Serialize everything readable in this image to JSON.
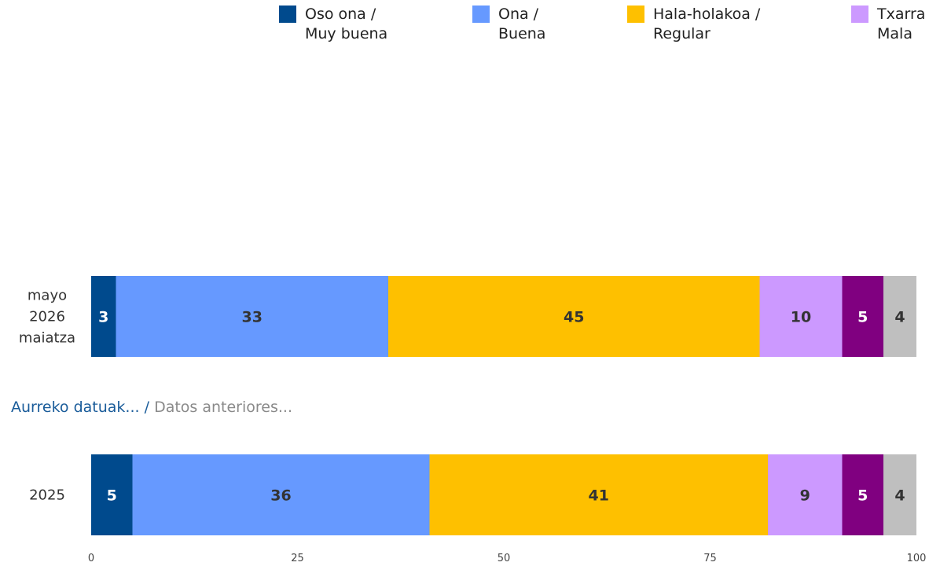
{
  "chart_data": {
    "type": "bar",
    "orientation": "horizontal",
    "stacked": true,
    "categories": [
      [
        "mayo",
        "2026",
        "maiatza"
      ],
      [
        "2025"
      ]
    ],
    "series": [
      {
        "name": [
          "Oso ona /",
          "Muy buena"
        ],
        "color": "#004a8d",
        "label_color": "#ffffff",
        "values": [
          3,
          5
        ]
      },
      {
        "name": [
          "Ona /",
          "Buena"
        ],
        "color": "#6699ff",
        "label_color": "#333333",
        "values": [
          33,
          36
        ]
      },
      {
        "name": [
          "Hala-holakoa /",
          "Regular"
        ],
        "color": "#fec000",
        "label_color": "#333333",
        "values": [
          45,
          41
        ]
      },
      {
        "name": [
          "Txarra",
          "Mala"
        ],
        "color": "#cc99ff",
        "label_color": "#333333",
        "values": [
          10,
          9
        ]
      },
      {
        "name": [],
        "color": "#800080",
        "label_color": "#ffffff",
        "values": [
          5,
          5
        ]
      },
      {
        "name": [],
        "color": "#bfbfbf",
        "label_color": "#333333",
        "values": [
          4,
          4
        ]
      }
    ],
    "xlim": [
      0,
      100
    ],
    "xticks": [
      0,
      25,
      50,
      75,
      100
    ],
    "legend_position": "top",
    "grid": false
  },
  "section_label": {
    "basque": "Aurreko datuak...",
    "separator": "/",
    "spanish": "Datos anteriores..."
  }
}
